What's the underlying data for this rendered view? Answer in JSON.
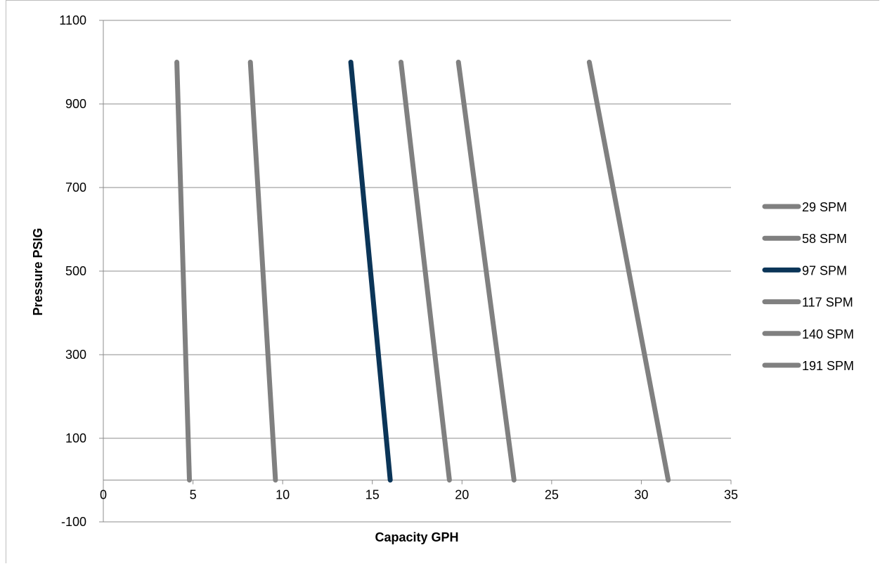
{
  "chart_data": {
    "type": "line",
    "title": "",
    "xlabel": "Capacity GPH",
    "ylabel": "Pressure PSIG",
    "xlim": [
      0,
      35
    ],
    "ylim": [
      -100,
      1100
    ],
    "x_ticks": [
      "0",
      "5",
      "10",
      "15",
      "20",
      "25",
      "30",
      "35"
    ],
    "y_ticks": [
      "-100",
      "100",
      "300",
      "500",
      "700",
      "900",
      "1100"
    ],
    "grid": "horizontal",
    "legend_position": "right",
    "series": [
      {
        "name": "29 SPM",
        "color": "#808080",
        "points": [
          [
            4.8,
            0
          ],
          [
            4.1,
            1000
          ]
        ]
      },
      {
        "name": "58 SPM",
        "color": "#808080",
        "points": [
          [
            9.6,
            0
          ],
          [
            8.2,
            1000
          ]
        ]
      },
      {
        "name": "97 SPM",
        "color": "#0b3558",
        "points": [
          [
            16.0,
            0
          ],
          [
            13.8,
            1000
          ]
        ]
      },
      {
        "name": "117 SPM",
        "color": "#808080",
        "points": [
          [
            19.3,
            0
          ],
          [
            16.6,
            1000
          ]
        ]
      },
      {
        "name": "140 SPM",
        "color": "#808080",
        "points": [
          [
            22.9,
            0
          ],
          [
            19.8,
            1000
          ]
        ]
      },
      {
        "name": "191 SPM",
        "color": "#808080",
        "points": [
          [
            31.5,
            0
          ],
          [
            27.1,
            1000
          ]
        ]
      }
    ]
  }
}
